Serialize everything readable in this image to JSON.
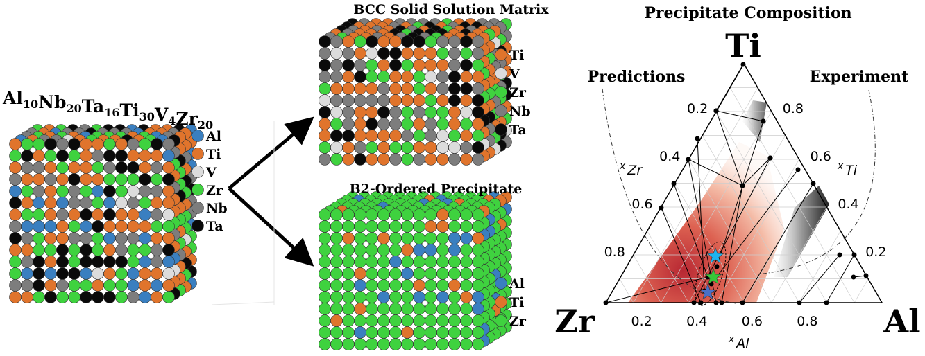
{
  "composition": {
    "formula": [
      {
        "symbol": "Al",
        "count": "10"
      },
      {
        "symbol": "Nb",
        "count": "20"
      },
      {
        "symbol": "Ta",
        "count": "16"
      },
      {
        "symbol": "Ti",
        "count": "30"
      },
      {
        "symbol": "V",
        "count": "4"
      },
      {
        "symbol": "Zr",
        "count": "20"
      }
    ],
    "legend": [
      {
        "label": "Al",
        "color": "#3a7fc0"
      },
      {
        "label": "Ti",
        "color": "#e0742c"
      },
      {
        "label": "V",
        "color": "#dcdcdc"
      },
      {
        "label": "Zr",
        "color": "#3fd23f"
      },
      {
        "label": "Nb",
        "color": "#7d7d7d"
      },
      {
        "label": "Ta",
        "color": "#0a0a0a"
      }
    ]
  },
  "matrix": {
    "title": "BCC Solid Solution Matrix",
    "legend": [
      {
        "label": "Ti",
        "color": "#e0742c"
      },
      {
        "label": "V",
        "color": "#dcdcdc"
      },
      {
        "label": "Zr",
        "color": "#3fd23f"
      },
      {
        "label": "Nb",
        "color": "#7d7d7d"
      },
      {
        "label": "Ta",
        "color": "#0a0a0a"
      }
    ]
  },
  "precipitate": {
    "title": "B2-Ordered Precipitate",
    "legend": [
      {
        "label": "Al",
        "color": "#3a7fc0"
      },
      {
        "label": "Ti",
        "color": "#e0742c"
      },
      {
        "label": "Zr",
        "color": "#3fd23f"
      }
    ]
  },
  "ternary": {
    "title": "Precipitate Composition",
    "predictions_label": "Predictions",
    "experiment_label": "Experiment",
    "vertices": {
      "top": "Ti",
      "left": "Zr",
      "right": "Al"
    },
    "axis_labels": {
      "zr": {
        "base": "x",
        "sub": "Zr"
      },
      "ti": {
        "base": "x",
        "sub": "Ti"
      },
      "al": {
        "base": "x",
        "sub": "Al"
      }
    },
    "zr_ticks": [
      0.2,
      0.4,
      0.6,
      0.8
    ],
    "ti_ticks": [
      0.8,
      0.6,
      0.4,
      0.2
    ],
    "al_ticks": [
      0.2,
      0.4,
      0.6,
      0.8
    ]
  }
}
